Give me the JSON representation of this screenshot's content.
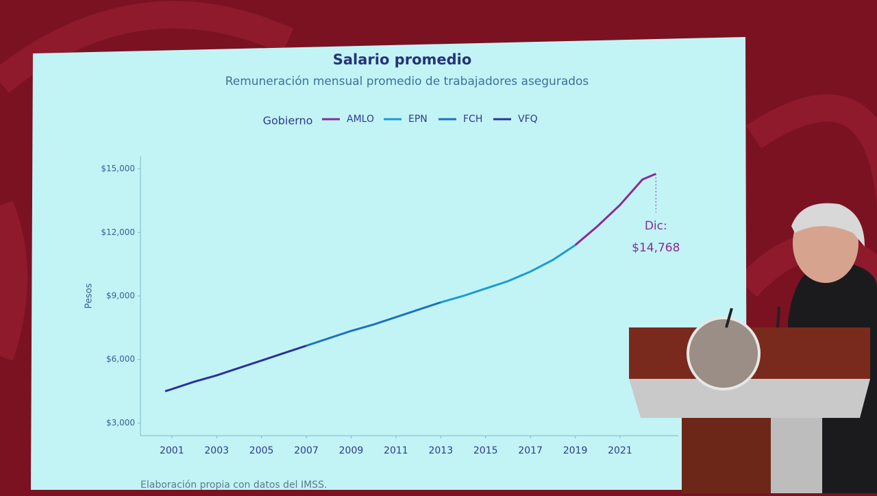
{
  "chart_data": {
    "type": "line",
    "title": "Salario promedio",
    "subtitle": "Remuneración mensual promedio de trabajadores asegurados",
    "legend_title": "Gobierno",
    "y_label": "Pesos",
    "annotation_lines": [
      "Dic:",
      "$14,768"
    ],
    "source": "Elaboración propia con datos del IMSS.",
    "xlim": [
      1999.6,
      2023.6
    ],
    "xticks": [
      2001,
      2003,
      2005,
      2007,
      2009,
      2011,
      2013,
      2015,
      2017,
      2019,
      2021
    ],
    "ylim": [
      2400,
      15600
    ],
    "yticks": [
      {
        "value": 3000,
        "label": "$3,000"
      },
      {
        "value": 6000,
        "label": "$6,000"
      },
      {
        "value": 9000,
        "label": "$9,000"
      },
      {
        "value": 12000,
        "label": "$12,000"
      },
      {
        "value": 15000,
        "label": "$15,000"
      }
    ],
    "series": [
      {
        "name": "AMLO",
        "color": "#8a2a9c",
        "x": [
          2019,
          2020,
          2021,
          2022,
          2022.6
        ],
        "values": [
          11400,
          12300,
          13300,
          14500,
          14768
        ]
      },
      {
        "name": "EPN",
        "color": "#1b9ad6",
        "x": [
          2013,
          2014,
          2015,
          2016,
          2017,
          2018,
          2019
        ],
        "values": [
          8700,
          9000,
          9350,
          9700,
          10150,
          10700,
          11400
        ]
      },
      {
        "name": "FCH",
        "color": "#1a72c2",
        "x": [
          2007,
          2008,
          2009,
          2010,
          2011,
          2012,
          2013
        ],
        "values": [
          6650,
          7000,
          7350,
          7650,
          8000,
          8350,
          8700
        ]
      },
      {
        "name": "VFQ",
        "color": "#2c2f9e",
        "x": [
          2000.7,
          2001,
          2002,
          2003,
          2004,
          2005,
          2006,
          2007
        ],
        "values": [
          4500,
          4600,
          4950,
          5250,
          5600,
          5950,
          6300,
          6650
        ]
      }
    ]
  }
}
